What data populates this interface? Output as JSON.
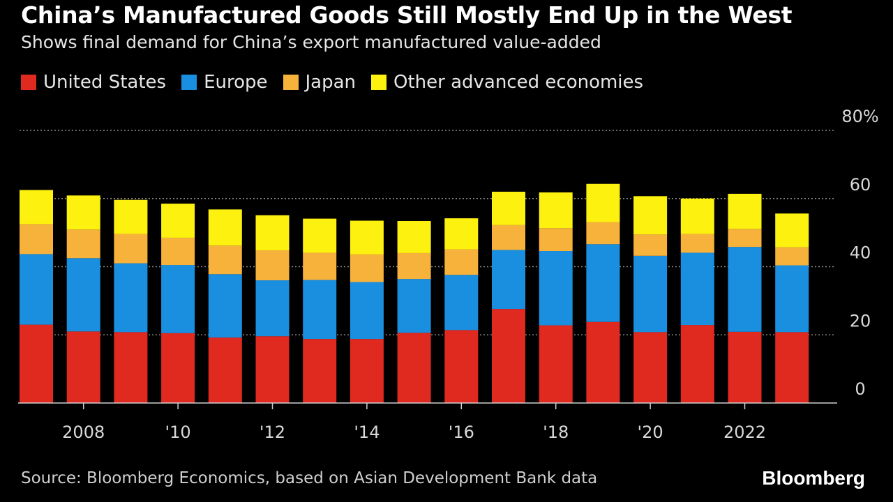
{
  "colors": {
    "background": "#000000",
    "us": "#e0291f",
    "europe": "#1a8fe0",
    "japan": "#f7b23b",
    "other": "#fdf20f",
    "grid": "#8c8c8c",
    "axis": "#d0d0d0"
  },
  "chart_data": {
    "type": "bar",
    "stacked": true,
    "title": "China’s Manufactured Goods Still Mostly End Up in the West",
    "subtitle": "Shows final demand for China’s export manufactured value-added",
    "categories": [
      "2007",
      "2008",
      "2009",
      "2010",
      "2011",
      "2012",
      "2013",
      "2014",
      "2015",
      "2016",
      "2017",
      "2018",
      "2019",
      "2020",
      "2021",
      "2022",
      "2023"
    ],
    "x_tick_labels": [
      {
        "index": 1,
        "label": "2008"
      },
      {
        "index": 3,
        "label": "'10"
      },
      {
        "index": 5,
        "label": "'12"
      },
      {
        "index": 7,
        "label": "'14"
      },
      {
        "index": 9,
        "label": "'16"
      },
      {
        "index": 11,
        "label": "'18"
      },
      {
        "index": 13,
        "label": "'20"
      },
      {
        "index": 15,
        "label": "2022"
      }
    ],
    "y_ticks": [
      {
        "value": 0,
        "label": "0"
      },
      {
        "value": 20,
        "label": "20"
      },
      {
        "value": 40,
        "label": "40"
      },
      {
        "value": 60,
        "label": "60"
      },
      {
        "value": 80,
        "label": "80%"
      }
    ],
    "ylim": [
      0,
      80
    ],
    "y_unit": "%",
    "legend_position": "top-left",
    "series": [
      {
        "name": "United States",
        "color_key": "us",
        "values": [
          23,
          21,
          20.8,
          20.5,
          19.2,
          19.6,
          18.8,
          18.8,
          20.6,
          21.4,
          27.6,
          22.8,
          23.8,
          20.8,
          22.9,
          20.9,
          20.8
        ]
      },
      {
        "name": "Europe",
        "color_key": "europe",
        "values": [
          20.7,
          21.5,
          20.2,
          20,
          18.6,
          16.4,
          17.3,
          16.7,
          15.8,
          16.2,
          17.3,
          21.8,
          22.8,
          22.4,
          21.2,
          24.9,
          19.6
        ]
      },
      {
        "name": "Japan",
        "color_key": "japan",
        "values": [
          8.8,
          8.4,
          8.6,
          8,
          8.4,
          8.8,
          8,
          8.1,
          7.6,
          7.5,
          7.3,
          6.7,
          6.5,
          6.3,
          5.5,
          5.3,
          5.3
        ]
      },
      {
        "name": "Other advanced economies",
        "color_key": "other",
        "values": [
          10,
          10,
          10,
          10,
          10.6,
          10.3,
          10,
          9.9,
          9.4,
          9.1,
          9.8,
          10.5,
          11.2,
          11.2,
          10.4,
          10.3,
          9.9
        ]
      }
    ]
  },
  "source": "Source: Bloomberg Economics, based on Asian Development Bank data",
  "brand": "Bloomberg"
}
